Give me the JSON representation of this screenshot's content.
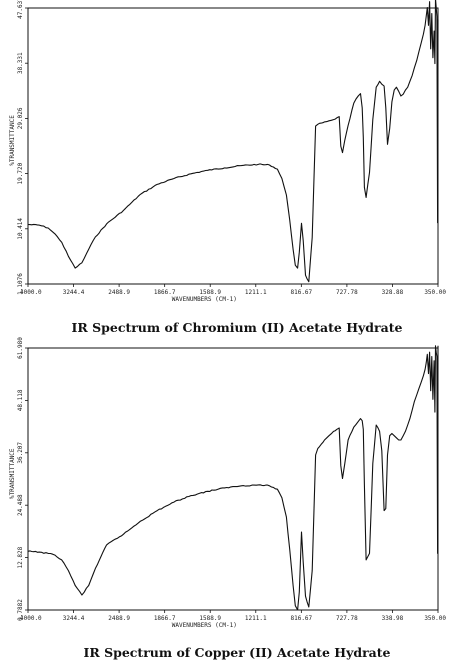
{
  "chart_data": [
    {
      "type": "line",
      "title": "IR Spectrum of Chromium (II) Acetate Hydrate",
      "xlabel": "WAVENUMBERS (CM-1)",
      "ylabel": "%TRANSMITTANCE",
      "xlim": [
        4000.0,
        350.0
      ],
      "ylim": [
        1.1076,
        47.927
      ],
      "x_ticks": [
        "4000.0",
        "3244.4",
        "2488.9",
        "1866.7",
        "1588.9",
        "1211.1",
        "816.67",
        "727.78",
        "328.88",
        "350.00"
      ],
      "y_ticks": [
        "1.1076",
        "10.414",
        "19.720",
        "29.026",
        "38.331",
        "47.637"
      ],
      "series": [
        {
          "x": [
            4000,
            3900,
            3820,
            3760,
            3700,
            3640,
            3580,
            3520,
            3460,
            3400,
            3300,
            3150,
            3000,
            2850,
            2700,
            2550,
            2400,
            2250,
            2100,
            1950,
            1850,
            1780,
            1740,
            1700,
            1670,
            1640,
            1620,
            1600,
            1585,
            1565,
            1550,
            1530,
            1500,
            1470,
            1440,
            1420,
            1390,
            1360,
            1320,
            1280,
            1250,
            1230,
            1215,
            1200,
            1180,
            1150,
            1100,
            1060,
            1040,
            1025,
            1015,
            1005,
            990,
            960,
            930,
            900,
            870,
            850,
            830,
            815,
            800,
            780,
            760,
            740,
            720,
            700,
            680,
            660,
            640,
            620,
            600,
            580,
            560,
            540,
            520,
            500,
            480,
            465,
            455,
            445,
            435,
            425,
            415,
            405,
            395,
            385,
            378,
            372,
            366,
            360,
            354,
            350
          ],
          "y": [
            11.2,
            11.1,
            10.6,
            9.6,
            8.2,
            5.8,
            3.8,
            4.7,
            7.0,
            9.1,
            11.3,
            13.6,
            16.3,
            18.0,
            19.0,
            19.8,
            20.4,
            20.8,
            21.2,
            21.4,
            21.3,
            20.6,
            19.0,
            16.2,
            12.0,
            7.0,
            4.3,
            3.8,
            6.5,
            11.4,
            8.5,
            2.6,
            1.5,
            9.0,
            27.9,
            28.2,
            28.4,
            28.6,
            28.8,
            29.0,
            29.3,
            29.5,
            24.5,
            23.4,
            25.5,
            28.0,
            31.8,
            33.0,
            33.4,
            31.0,
            26.0,
            17.5,
            15.8,
            20.0,
            29.0,
            34.5,
            35.5,
            35.0,
            34.7,
            31.0,
            24.8,
            27.5,
            32.0,
            34.0,
            34.5,
            33.8,
            33.0,
            33.3,
            34.0,
            34.5,
            35.5,
            36.5,
            37.8,
            39.0,
            40.5,
            42.0,
            43.5,
            45.0,
            46.5,
            48.0,
            45.0,
            49.0,
            41.0,
            47.0,
            39.5,
            44.0,
            38.5,
            49.5,
            48.0,
            46.5,
            11.5,
            46.0
          ]
        }
      ]
    },
    {
      "type": "line",
      "title": "IR Spectrum of Copper (II) Acetate Hydrate",
      "xlabel": "WAVENUMBERS (CM-1)",
      "ylabel": "%TRANSMITTANCE",
      "xlim": [
        4000.0,
        350.0
      ],
      "ylim": [
        0.7882,
        61.98
      ],
      "x_ticks": [
        "4000.0",
        "3244.4",
        "2488.9",
        "1866.7",
        "1588.9",
        "1211.1",
        "816.67",
        "727.78",
        "338.98",
        "350.00"
      ],
      "y_ticks": [
        "0.7882",
        "12.828",
        "24.488",
        "36.207",
        "48.118",
        "61.980"
      ],
      "series": [
        {
          "x": [
            4000,
            3900,
            3820,
            3760,
            3700,
            3640,
            3580,
            3520,
            3460,
            3400,
            3300,
            3150,
            3000,
            2850,
            2700,
            2550,
            2400,
            2250,
            2100,
            1950,
            1850,
            1780,
            1740,
            1700,
            1670,
            1640,
            1620,
            1600,
            1585,
            1565,
            1550,
            1530,
            1500,
            1470,
            1440,
            1420,
            1390,
            1360,
            1320,
            1280,
            1250,
            1230,
            1215,
            1200,
            1180,
            1150,
            1100,
            1060,
            1040,
            1025,
            1015,
            1005,
            990,
            960,
            930,
            900,
            870,
            850,
            830,
            815,
            800,
            780,
            760,
            740,
            720,
            700,
            680,
            660,
            640,
            620,
            600,
            580,
            560,
            540,
            520,
            500,
            480,
            465,
            455,
            445,
            435,
            425,
            415,
            405,
            395,
            385,
            378,
            372,
            366,
            360,
            354,
            350
          ],
          "y": [
            14.5,
            14.3,
            14.0,
            13.6,
            12.5,
            10.0,
            6.5,
            4.3,
            6.5,
            10.5,
            16.0,
            18.5,
            21.5,
            24.0,
            26.0,
            27.5,
            28.5,
            29.3,
            29.8,
            30.0,
            29.8,
            29.0,
            27.0,
            22.5,
            15.0,
            6.5,
            1.8,
            0.8,
            5.0,
            19.0,
            12.0,
            4.0,
            1.5,
            10.0,
            37.0,
            38.5,
            39.5,
            40.5,
            41.5,
            42.5,
            43.0,
            43.3,
            34.5,
            31.5,
            35.0,
            40.5,
            43.5,
            44.8,
            45.5,
            45.0,
            43.0,
            30.0,
            12.5,
            14.0,
            35.0,
            44.0,
            42.5,
            38.0,
            24.0,
            24.5,
            37.0,
            41.5,
            42.0,
            41.5,
            41.0,
            40.5,
            40.5,
            41.5,
            42.5,
            44.0,
            45.5,
            47.5,
            49.5,
            51.0,
            52.5,
            54.0,
            55.5,
            57.0,
            58.5,
            60.5,
            56.0,
            61.0,
            52.0,
            60.0,
            50.0,
            59.0,
            47.0,
            62.5,
            61.0,
            60.0,
            14.0,
            62.5
          ]
        }
      ]
    }
  ]
}
